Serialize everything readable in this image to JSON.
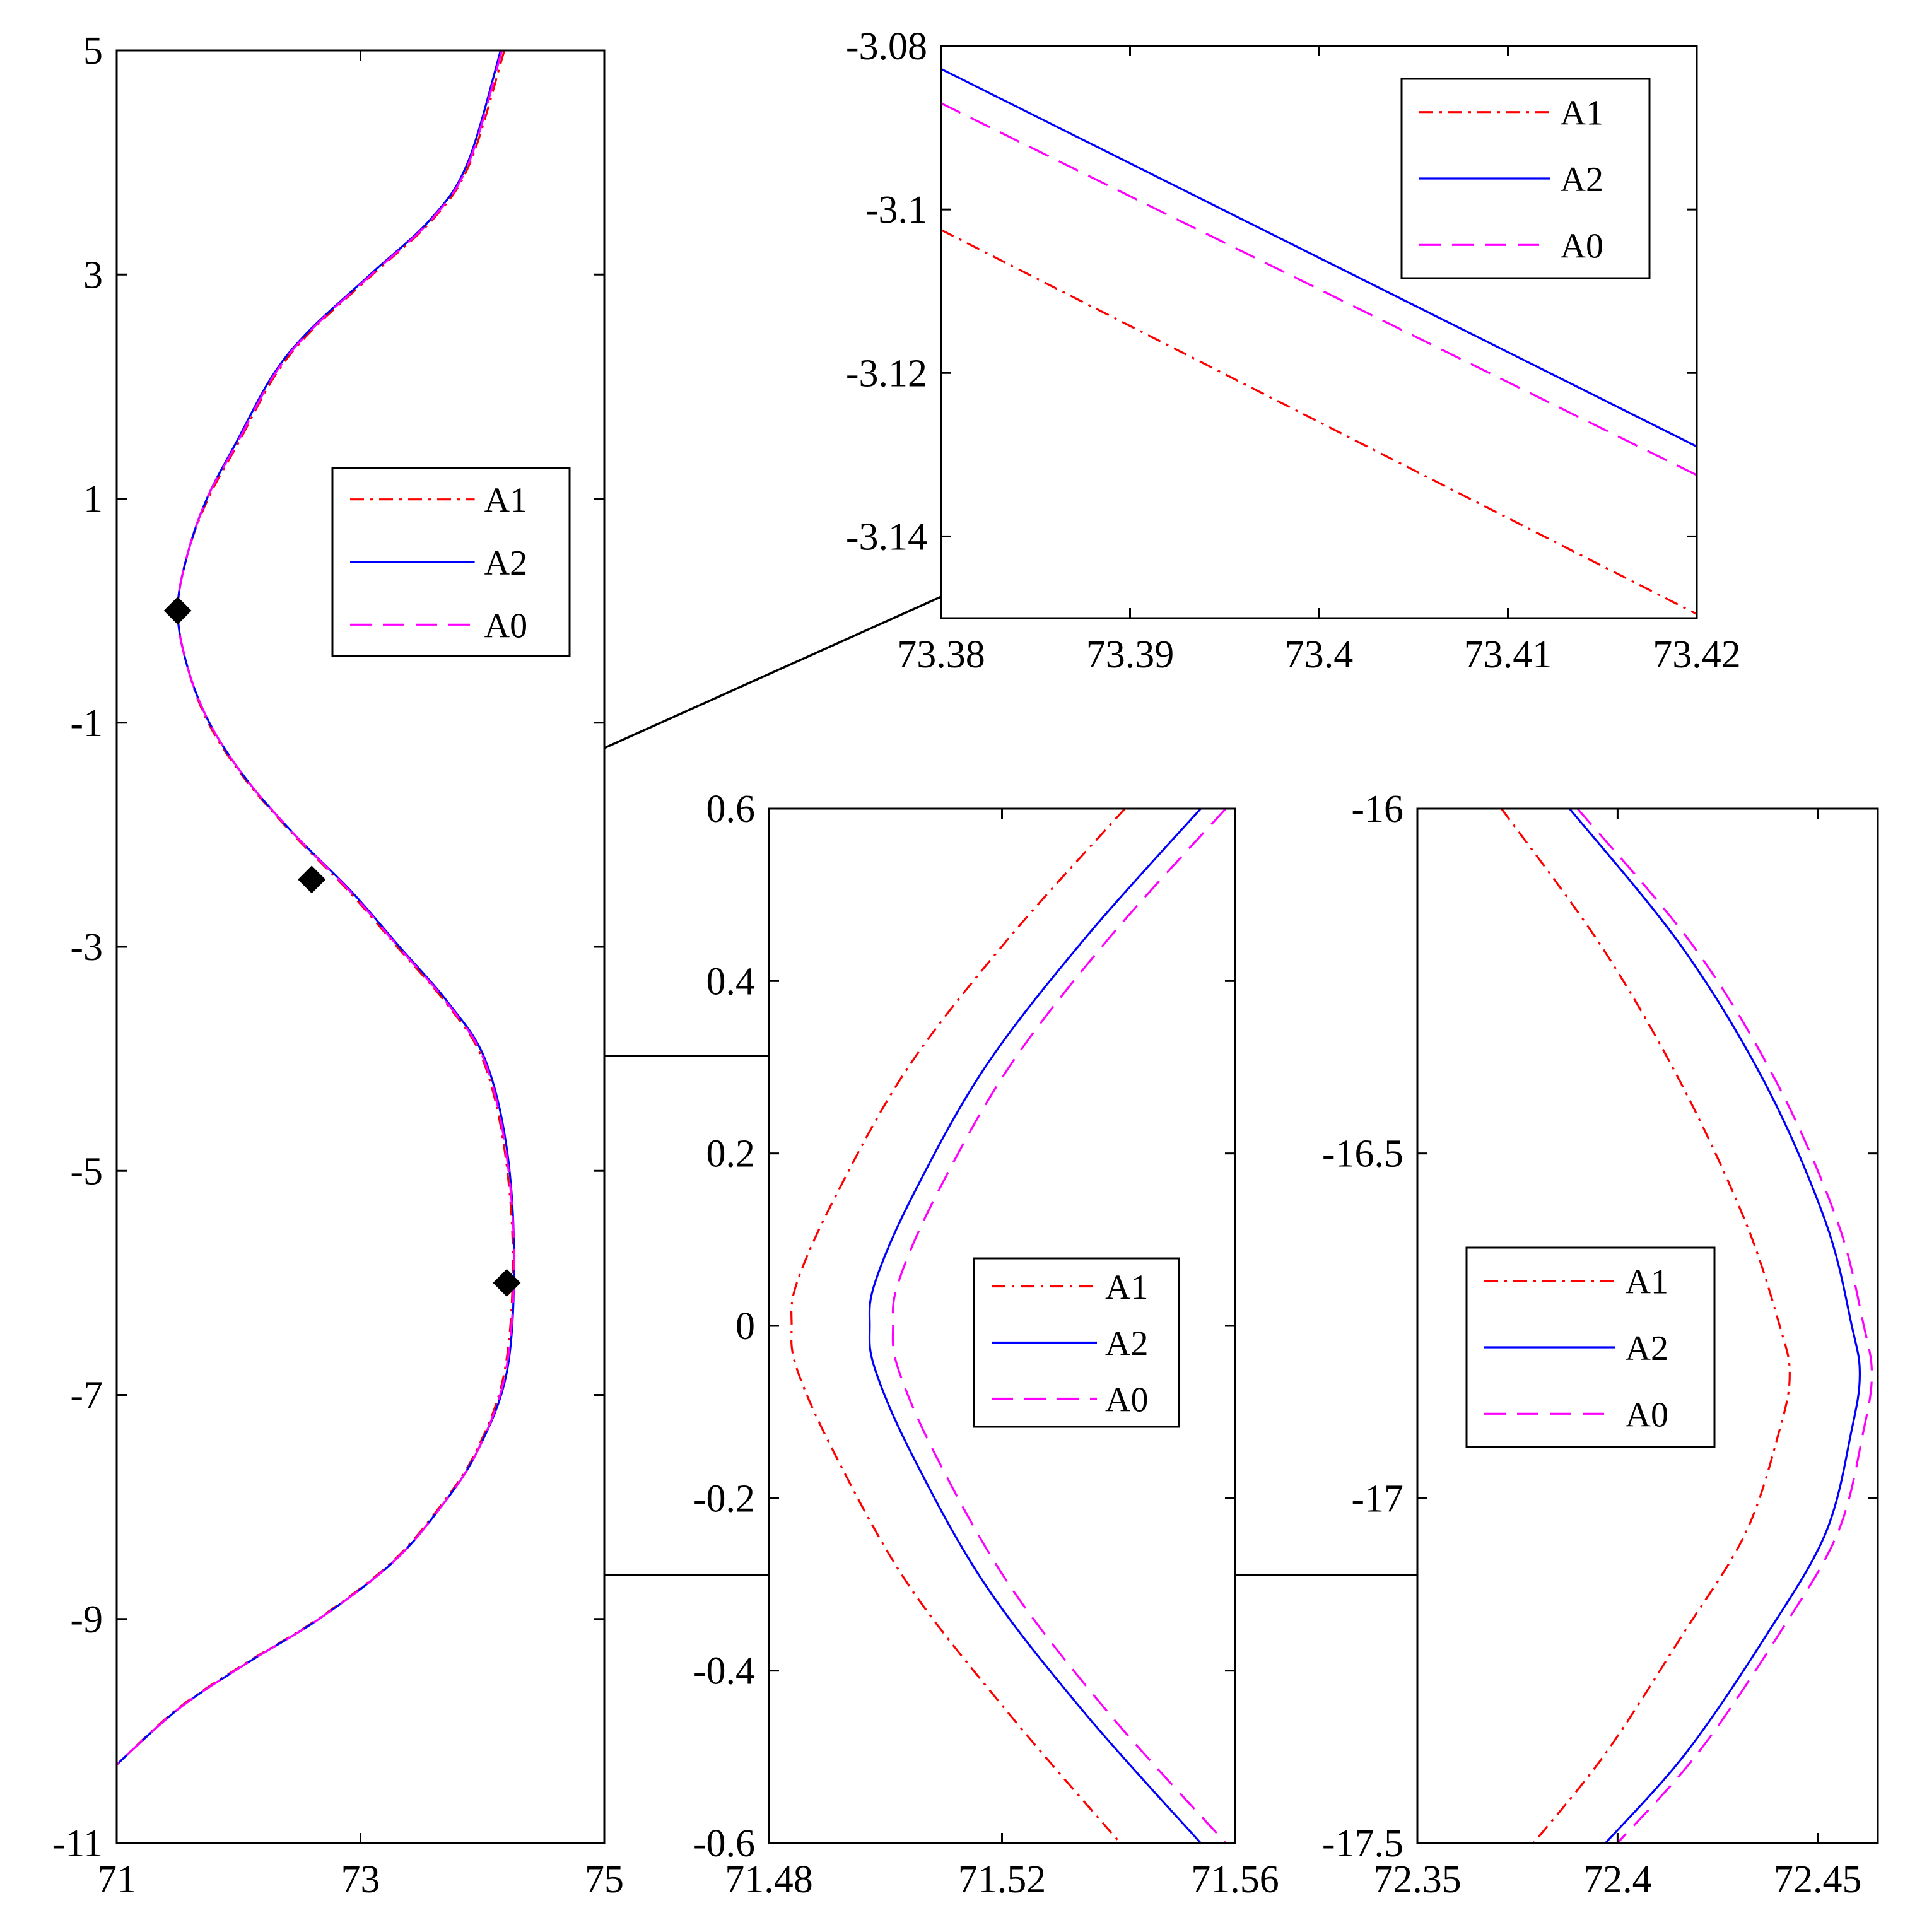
{
  "legend_entries": [
    {
      "label": "A1",
      "color": "#ff0000",
      "style": "dashdot"
    },
    {
      "label": "A2",
      "color": "#0000ff",
      "style": "solid"
    },
    {
      "label": "A0",
      "color": "#ff00ff",
      "style": "dashed"
    }
  ],
  "chart_data": [
    {
      "type": "line",
      "id": "main",
      "title": "",
      "xlabel": "",
      "ylabel": "",
      "xlim": [
        71,
        75
      ],
      "ylim": [
        -11,
        5
      ],
      "xticks": [
        71,
        73,
        75
      ],
      "yticks": [
        5,
        3,
        1,
        -1,
        -3,
        -5,
        -7,
        -9,
        -11
      ],
      "xtick_labels": [
        "71",
        "73",
        "75"
      ],
      "ytick_labels": [
        "5",
        "3",
        "1",
        "-1",
        "-3",
        "-5",
        "-7",
        "-9",
        "-11"
      ],
      "legend": "center-right",
      "grid": false,
      "series": [
        {
          "name": "A1",
          "color": "#ff0000",
          "x": [
            74.18,
            73.9,
            73.6,
            73.1,
            72.6,
            72.3,
            72.0,
            71.75,
            71.58,
            71.5,
            71.58,
            71.75,
            72.05,
            72.45,
            72.9,
            73.3,
            73.7,
            74.0,
            74.18,
            74.25,
            74.18,
            73.95,
            73.65,
            73.25,
            72.65,
            72.05,
            71.5,
            71.0
          ],
          "y": [
            5.0,
            4.0,
            3.5,
            3.0,
            2.5,
            2.1,
            1.5,
            1.0,
            0.5,
            0.0,
            -0.5,
            -1.0,
            -1.5,
            -2.0,
            -2.5,
            -3.0,
            -3.5,
            -4.0,
            -4.8,
            -5.8,
            -6.8,
            -7.5,
            -8.0,
            -8.5,
            -9.0,
            -9.4,
            -9.8,
            -10.3
          ]
        },
        {
          "name": "A2",
          "color": "#0000ff",
          "x": [
            74.15,
            73.88,
            73.58,
            73.08,
            72.58,
            72.28,
            71.98,
            71.74,
            71.58,
            71.5,
            71.58,
            71.76,
            72.06,
            72.46,
            72.92,
            73.32,
            73.72,
            74.02,
            74.2,
            74.26,
            74.2,
            73.96,
            73.66,
            73.26,
            72.66,
            72.06,
            71.51,
            71.0
          ],
          "y": [
            5.0,
            4.0,
            3.5,
            3.0,
            2.5,
            2.1,
            1.5,
            1.0,
            0.5,
            0.0,
            -0.5,
            -1.0,
            -1.5,
            -2.0,
            -2.5,
            -3.0,
            -3.5,
            -4.0,
            -4.8,
            -5.8,
            -6.8,
            -7.5,
            -8.0,
            -8.5,
            -9.0,
            -9.4,
            -9.8,
            -10.3
          ]
        },
        {
          "name": "A0",
          "color": "#ff00ff",
          "x": [
            74.16,
            73.89,
            73.59,
            73.09,
            72.59,
            72.29,
            71.99,
            71.74,
            71.58,
            71.5,
            71.58,
            71.76,
            72.06,
            72.46,
            72.91,
            73.31,
            73.71,
            74.01,
            74.19,
            74.26,
            74.19,
            73.96,
            73.66,
            73.26,
            72.66,
            72.06,
            71.51,
            71.0
          ],
          "y": [
            5.0,
            4.0,
            3.5,
            3.0,
            2.5,
            2.1,
            1.5,
            1.0,
            0.5,
            0.0,
            -0.5,
            -1.0,
            -1.5,
            -2.0,
            -2.5,
            -3.0,
            -3.5,
            -4.0,
            -4.8,
            -5.8,
            -6.8,
            -7.5,
            -8.0,
            -8.5,
            -9.0,
            -9.4,
            -9.8,
            -10.3
          ]
        }
      ],
      "markers": [
        {
          "x": 71.5,
          "y": 0.0
        },
        {
          "x": 72.6,
          "y": -2.4
        },
        {
          "x": 74.2,
          "y": -6.0
        }
      ]
    },
    {
      "type": "line",
      "id": "zoom-top",
      "title": "",
      "xlabel": "",
      "ylabel": "",
      "xlim": [
        73.38,
        73.42
      ],
      "ylim": [
        -3.15,
        -3.08
      ],
      "xticks": [
        73.38,
        73.39,
        73.4,
        73.41,
        73.42
      ],
      "yticks": [
        -3.08,
        -3.1,
        -3.12,
        -3.14
      ],
      "xtick_labels": [
        "73.38",
        "73.39",
        "73.4",
        "73.41",
        "73.42"
      ],
      "ytick_labels": [
        "-3.08",
        "-3.1",
        "-3.12",
        "-3.14"
      ],
      "legend": "top-right",
      "grid": false,
      "series": [
        {
          "name": "A1",
          "color": "#ff0000",
          "x": [
            73.38,
            73.42
          ],
          "y": [
            -3.1025,
            -3.1495
          ]
        },
        {
          "name": "A2",
          "color": "#0000ff",
          "x": [
            73.38,
            73.42
          ],
          "y": [
            -3.0828,
            -3.129
          ]
        },
        {
          "name": "A0",
          "color": "#ff00ff",
          "x": [
            73.38,
            73.42
          ],
          "y": [
            -3.087,
            -3.1325
          ]
        }
      ]
    },
    {
      "type": "line",
      "id": "zoom-mid",
      "title": "",
      "xlabel": "",
      "ylabel": "",
      "xlim": [
        71.48,
        71.56
      ],
      "ylim": [
        -0.6,
        0.6
      ],
      "xticks": [
        71.48,
        71.52,
        71.56
      ],
      "yticks": [
        0.6,
        0.4,
        0.2,
        0,
        -0.2,
        -0.4,
        -0.6
      ],
      "xtick_labels": [
        "71.48",
        "71.52",
        "71.56"
      ],
      "ytick_labels": [
        "0.6",
        "0.4",
        "0.2",
        "0",
        "-0.2",
        "-0.4",
        "-0.6"
      ],
      "legend": "center-right",
      "grid": false,
      "series": [
        {
          "name": "A1",
          "color": "#ff0000",
          "x": [
            71.5411,
            71.5212,
            71.5039,
            71.4914,
            71.4848,
            71.4839,
            71.4848,
            71.4914,
            71.5039,
            71.5212,
            71.5403
          ],
          "y": [
            0.6,
            0.45,
            0.3,
            0.15,
            0.05,
            0.0,
            -0.05,
            -0.15,
            -0.3,
            -0.45,
            -0.6
          ]
        },
        {
          "name": "A2",
          "color": "#0000ff",
          "x": [
            71.5541,
            71.5343,
            71.5171,
            71.5046,
            71.4982,
            71.4973,
            71.4982,
            71.5046,
            71.5171,
            71.5343,
            71.5541
          ],
          "y": [
            0.6,
            0.45,
            0.3,
            0.15,
            0.05,
            0.0,
            -0.05,
            -0.15,
            -0.3,
            -0.45,
            -0.6
          ]
        },
        {
          "name": "A0",
          "color": "#ff00ff",
          "x": [
            71.5584,
            71.5384,
            71.5212,
            71.5086,
            71.5022,
            71.5013,
            71.5022,
            71.5086,
            71.5212,
            71.5384,
            71.5584
          ],
          "y": [
            0.6,
            0.45,
            0.3,
            0.15,
            0.05,
            0.0,
            -0.05,
            -0.15,
            -0.3,
            -0.45,
            -0.6
          ]
        }
      ]
    },
    {
      "type": "line",
      "id": "zoom-bottom",
      "title": "",
      "xlabel": "",
      "ylabel": "",
      "xlim": [
        72.35,
        72.465
      ],
      "ylim": [
        -17.5,
        -16
      ],
      "xticks": [
        72.35,
        72.4,
        72.45
      ],
      "yticks": [
        -16,
        -16.5,
        -17,
        -17.5
      ],
      "xtick_labels": [
        "72.35",
        "72.4",
        "72.45"
      ],
      "ytick_labels": [
        "-16",
        "-16.5",
        "-17",
        "-17.5"
      ],
      "legend": "center-left",
      "grid": false,
      "series": [
        {
          "name": "A1",
          "color": "#ff0000",
          "x": [
            72.371,
            72.396,
            72.416,
            72.432,
            72.4405,
            72.443,
            72.4405,
            72.432,
            72.416,
            72.397,
            72.379
          ],
          "y": [
            -16.0,
            -16.2,
            -16.4,
            -16.6,
            -16.75,
            -16.82,
            -16.9,
            -17.05,
            -17.2,
            -17.37,
            -17.5
          ]
        },
        {
          "name": "A2",
          "color": "#0000ff",
          "x": [
            72.388,
            72.416,
            72.437,
            72.452,
            72.4585,
            72.4605,
            72.4585,
            72.452,
            72.437,
            72.417,
            72.397
          ],
          "y": [
            -16.0,
            -16.2,
            -16.4,
            -16.6,
            -16.75,
            -16.82,
            -16.9,
            -17.05,
            -17.2,
            -17.37,
            -17.5
          ]
        },
        {
          "name": "A0",
          "color": "#ff00ff",
          "x": [
            72.39,
            72.419,
            72.44,
            72.455,
            72.4615,
            72.4635,
            72.4615,
            72.455,
            72.44,
            72.42,
            72.4
          ],
          "y": [
            -16.0,
            -16.2,
            -16.4,
            -16.6,
            -16.75,
            -16.82,
            -16.9,
            -17.05,
            -17.2,
            -17.37,
            -17.5
          ]
        }
      ]
    }
  ]
}
